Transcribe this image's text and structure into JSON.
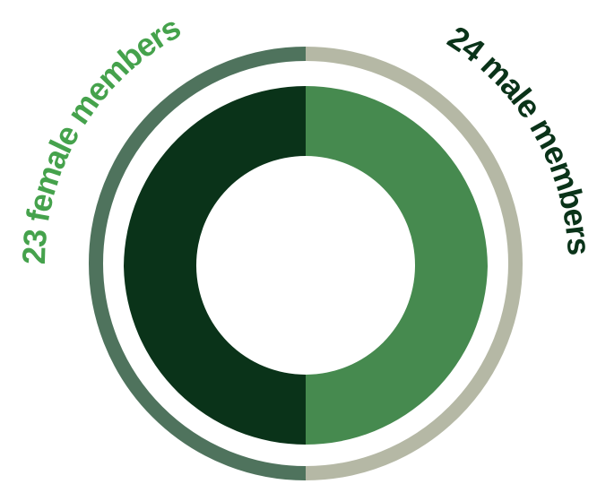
{
  "chart_data": {
    "type": "pie",
    "title": "",
    "categories": [
      "female members",
      "male members"
    ],
    "values": [
      23,
      24
    ],
    "labels": [
      "23 female members",
      "24 male members"
    ],
    "colors": {
      "female_outer": "#4f735d",
      "male_outer": "#b5b8a5",
      "inner_dark": "#0a3319",
      "inner_light": "#468a4f",
      "female_label": "#45a24c",
      "male_label": "#0a3319"
    }
  }
}
